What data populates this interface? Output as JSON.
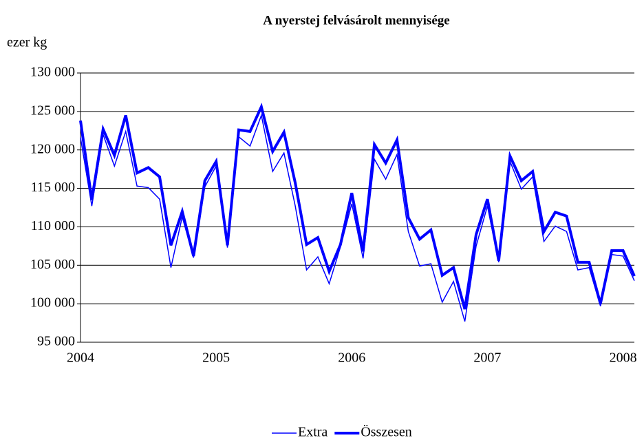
{
  "chart_data": {
    "type": "line",
    "title": "A nyerstej felvásárolt mennyisége",
    "y_label": "ezer kg",
    "categories": [
      "2004",
      null,
      null,
      null,
      null,
      null,
      null,
      null,
      null,
      null,
      null,
      null,
      "2005",
      null,
      null,
      null,
      null,
      null,
      null,
      null,
      null,
      null,
      null,
      null,
      "2006",
      null,
      null,
      null,
      null,
      null,
      null,
      null,
      null,
      null,
      null,
      null,
      "2007",
      null,
      null,
      null,
      null,
      null,
      null,
      null,
      null,
      null,
      null,
      null,
      "2008",
      null
    ],
    "series": [
      {
        "name": "Extra",
        "color": "#0000ff",
        "width": 1.5,
        "values": [
          121600,
          112700,
          122000,
          117900,
          122400,
          115300,
          115100,
          113600,
          104700,
          111300,
          106000,
          115200,
          117900,
          107300,
          121700,
          120500,
          124500,
          117200,
          119600,
          112700,
          104400,
          106100,
          102600,
          107400,
          113000,
          105900,
          118800,
          116200,
          119400,
          109400,
          104900,
          105200,
          100200,
          102900,
          97700,
          107500,
          112700,
          105400,
          118500,
          114900,
          116500,
          108100,
          110100,
          109400,
          104400,
          104700,
          99700,
          106400,
          106200,
          103000
        ]
      },
      {
        "name": "Összesen",
        "color": "#0000ff",
        "width": 4,
        "values": [
          123800,
          113500,
          122700,
          119300,
          124500,
          117000,
          117700,
          116500,
          107600,
          112000,
          106200,
          116000,
          118500,
          107600,
          122600,
          122400,
          125600,
          119800,
          122300,
          115700,
          107700,
          108600,
          104200,
          107700,
          114400,
          106800,
          120700,
          118300,
          121300,
          111200,
          108400,
          109600,
          103700,
          104700,
          99300,
          109000,
          113600,
          105600,
          119200,
          116000,
          117200,
          109400,
          111900,
          111400,
          105400,
          105400,
          100000,
          106900,
          106900,
          103600
        ]
      }
    ],
    "ylim": [
      95000,
      130000
    ],
    "yticks": [
      {
        "value": 95000,
        "label": "95 000"
      },
      {
        "value": 100000,
        "label": "100 000"
      },
      {
        "value": 105000,
        "label": "105 000"
      },
      {
        "value": 110000,
        "label": "110 000"
      },
      {
        "value": 115000,
        "label": "115 000"
      },
      {
        "value": 120000,
        "label": "120 000"
      },
      {
        "value": 125000,
        "label": "125 000"
      },
      {
        "value": 130000,
        "label": "130 000"
      }
    ],
    "grid": true,
    "legend": "bottom"
  }
}
